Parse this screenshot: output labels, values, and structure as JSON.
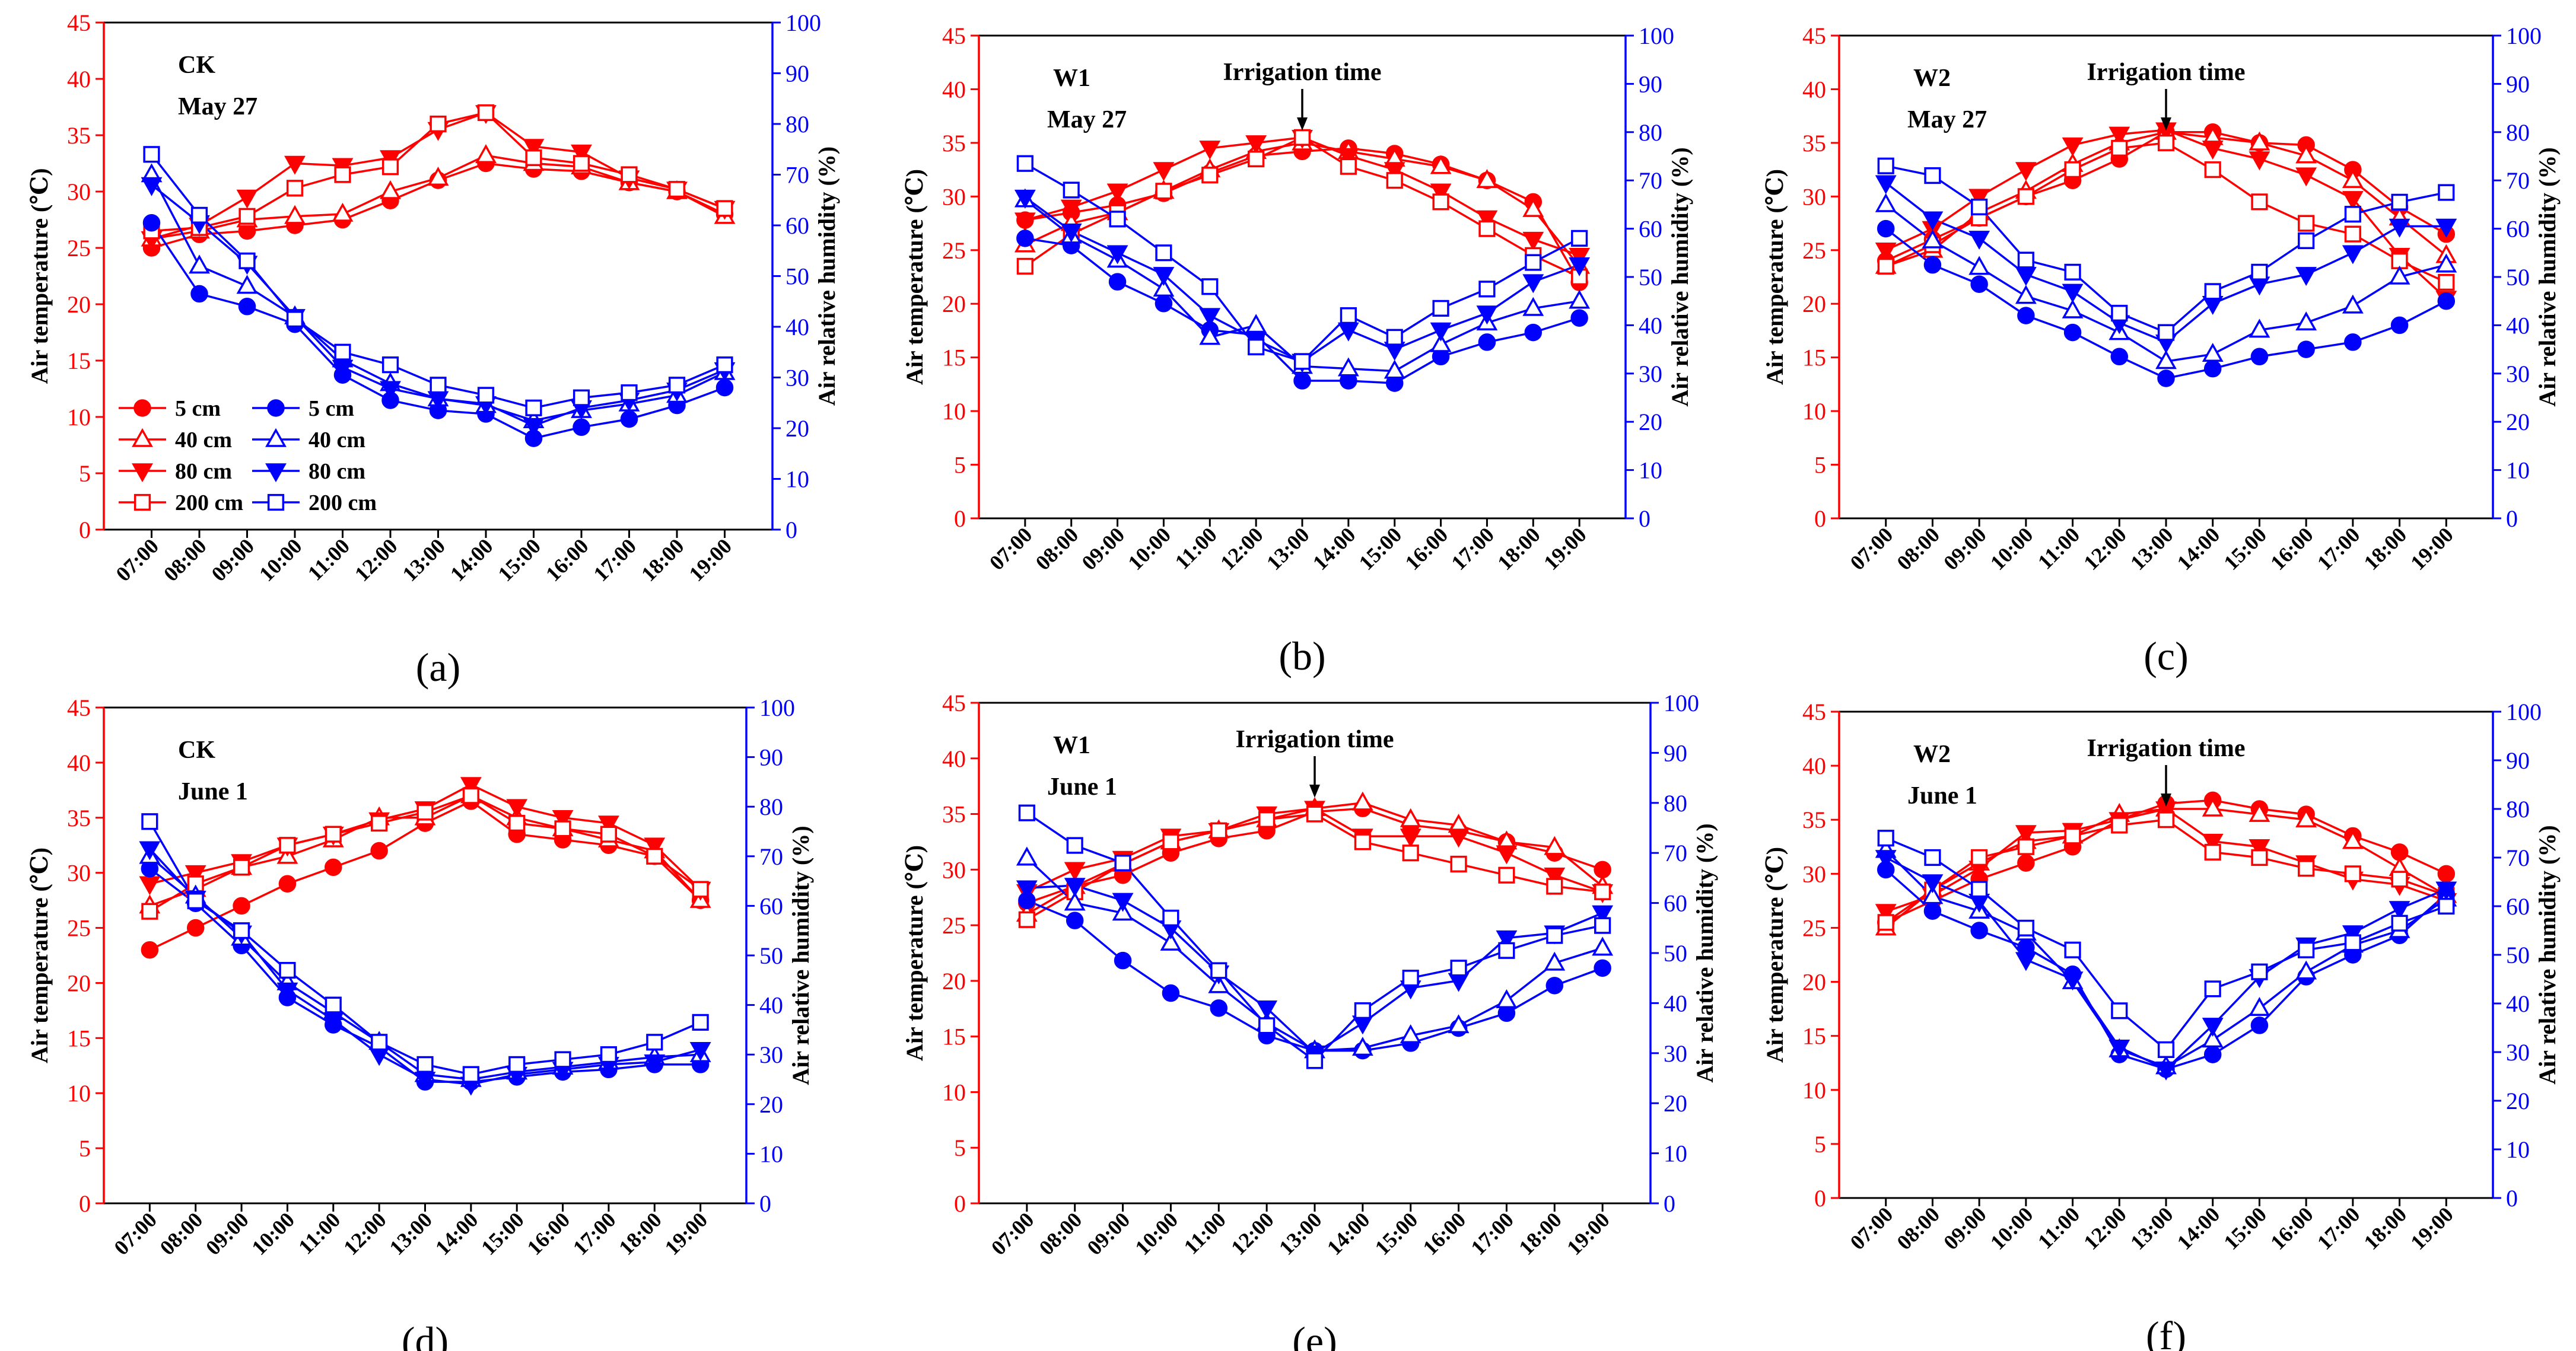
{
  "figure": {
    "times": [
      "07:00",
      "08:00",
      "09:00",
      "10:00",
      "11:00",
      "12:00",
      "13:00",
      "14:00",
      "15:00",
      "16:00",
      "17:00",
      "18:00",
      "19:00"
    ],
    "left_axis": {
      "label": "Air temperature (℃)",
      "min": 0,
      "max": 45,
      "ticks": [
        0,
        5,
        10,
        15,
        20,
        25,
        30,
        35,
        40,
        45
      ],
      "color": "#ff0000"
    },
    "right_axis": {
      "label": "Air relative humidity (%)",
      "min": 0,
      "max": 100,
      "ticks": [
        0,
        10,
        20,
        30,
        40,
        50,
        60,
        70,
        80,
        90,
        100
      ],
      "color": "#0000ff"
    },
    "legend": [
      {
        "text": "5 cm",
        "marker": "circle",
        "fill": true
      },
      {
        "text": "40 cm",
        "marker": "triangle-up",
        "fill": false
      },
      {
        "text": "80 cm",
        "marker": "triangle-down",
        "fill": true
      },
      {
        "text": "200 cm",
        "marker": "square",
        "fill": false
      }
    ],
    "colors": {
      "temperature": "#ff0000",
      "humidity": "#0000ff",
      "text": "#000000"
    }
  },
  "chart_data": [
    {
      "type": "line",
      "panel_label": "(a)",
      "title_line1": "CK",
      "title_line2": "May 27",
      "annotation": "",
      "temperature": [
        {
          "name": "5 cm",
          "values": [
            25.0,
            26.2,
            26.5,
            27.0,
            27.5,
            29.2,
            31.0,
            32.5,
            32.0,
            31.8,
            30.8,
            30.0,
            28.0
          ]
        },
        {
          "name": "40 cm",
          "values": [
            25.8,
            26.5,
            27.5,
            27.8,
            28.0,
            30.0,
            31.2,
            33.2,
            32.5,
            32.2,
            30.8,
            30.0,
            27.8
          ]
        },
        {
          "name": "80 cm",
          "values": [
            25.8,
            27.0,
            29.5,
            32.5,
            32.3,
            33.0,
            35.5,
            37.0,
            34.0,
            33.5,
            31.2,
            30.2,
            28.5
          ]
        },
        {
          "name": "200 cm",
          "values": [
            26.5,
            26.8,
            27.8,
            30.3,
            31.5,
            32.2,
            36.0,
            37.0,
            33.0,
            32.5,
            31.5,
            30.2,
            28.5
          ]
        }
      ],
      "humidity": [
        {
          "name": "5 cm",
          "values": [
            60.5,
            46.5,
            44.0,
            40.5,
            30.5,
            25.5,
            23.5,
            22.8,
            18.0,
            20.2,
            21.8,
            24.5,
            28.0
          ]
        },
        {
          "name": "40 cm",
          "values": [
            70.0,
            52.0,
            48.0,
            42.0,
            33.5,
            28.8,
            25.8,
            24.5,
            21.5,
            23.5,
            24.8,
            26.5,
            31.0
          ]
        },
        {
          "name": "80 cm",
          "values": [
            68.0,
            60.5,
            52.5,
            42.0,
            32.0,
            27.8,
            25.8,
            24.8,
            20.5,
            24.0,
            25.5,
            27.5,
            31.5
          ]
        },
        {
          "name": "200 cm",
          "values": [
            74.0,
            62.0,
            53.0,
            41.5,
            35.0,
            32.5,
            28.5,
            26.5,
            24.0,
            26.0,
            27.0,
            28.5,
            32.5
          ]
        }
      ]
    },
    {
      "type": "line",
      "panel_label": "(b)",
      "title_line1": "W1",
      "title_line2": "May 27",
      "annotation": "Irrigation time",
      "temperature": [
        {
          "name": "5 cm",
          "values": [
            27.8,
            28.5,
            29.2,
            30.3,
            32.2,
            33.8,
            34.2,
            34.5,
            34.0,
            33.0,
            31.5,
            29.5,
            22.0
          ]
        },
        {
          "name": "40 cm",
          "values": [
            25.5,
            27.5,
            28.5,
            30.5,
            32.5,
            34.2,
            35.0,
            34.2,
            33.5,
            32.8,
            31.5,
            28.8,
            23.5
          ]
        },
        {
          "name": "80 cm",
          "values": [
            27.8,
            29.0,
            30.5,
            32.5,
            34.5,
            35.0,
            35.5,
            33.8,
            32.5,
            30.5,
            28.0,
            26.0,
            24.5
          ]
        },
        {
          "name": "200 cm",
          "values": [
            23.5,
            26.5,
            28.5,
            30.5,
            32.0,
            33.5,
            35.5,
            32.8,
            31.5,
            29.5,
            27.0,
            24.5,
            22.5
          ]
        }
      ],
      "humidity": [
        {
          "name": "5 cm",
          "values": [
            58.0,
            56.5,
            49.0,
            44.5,
            39.0,
            38.0,
            28.5,
            28.5,
            28.0,
            33.5,
            36.5,
            38.5,
            41.5
          ]
        },
        {
          "name": "40 cm",
          "values": [
            66.0,
            58.5,
            53.5,
            47.5,
            37.5,
            40.0,
            31.5,
            31.0,
            30.5,
            36.0,
            40.5,
            43.5,
            45.0
          ]
        },
        {
          "name": "80 cm",
          "values": [
            66.5,
            59.5,
            55.0,
            50.5,
            42.0,
            37.0,
            32.5,
            39.0,
            35.0,
            39.0,
            42.5,
            49.0,
            52.5
          ]
        },
        {
          "name": "200 cm",
          "values": [
            73.5,
            68.0,
            62.0,
            55.0,
            48.0,
            35.5,
            32.5,
            42.0,
            37.5,
            43.5,
            47.5,
            53.0,
            58.0
          ]
        }
      ]
    },
    {
      "type": "line",
      "panel_label": "(c)",
      "title_line1": "W2",
      "title_line2": "May 27",
      "annotation": "Irrigation time",
      "temperature": [
        {
          "name": "5 cm",
          "values": [
            24.0,
            26.0,
            28.0,
            30.0,
            31.5,
            33.5,
            36.0,
            36.0,
            35.0,
            34.8,
            32.5,
            29.0,
            26.5
          ]
        },
        {
          "name": "40 cm",
          "values": [
            23.5,
            25.0,
            28.5,
            30.5,
            33.0,
            35.0,
            36.0,
            35.5,
            35.0,
            33.8,
            31.5,
            28.0,
            24.5
          ]
        },
        {
          "name": "80 cm",
          "values": [
            25.0,
            27.0,
            30.0,
            32.5,
            34.8,
            35.8,
            36.2,
            34.5,
            33.5,
            32.0,
            29.8,
            24.5,
            20.5
          ]
        },
        {
          "name": "200 cm",
          "values": [
            23.5,
            25.5,
            28.0,
            30.0,
            32.5,
            34.5,
            35.0,
            32.5,
            29.5,
            27.5,
            26.5,
            24.0,
            22.0
          ]
        }
      ],
      "humidity": [
        {
          "name": "5 cm",
          "values": [
            60.0,
            52.5,
            48.5,
            42.0,
            38.5,
            33.5,
            29.0,
            31.0,
            33.5,
            35.0,
            36.5,
            40.0,
            45.0
          ]
        },
        {
          "name": "40 cm",
          "values": [
            65.0,
            57.5,
            52.0,
            46.0,
            43.0,
            38.5,
            32.5,
            34.0,
            39.0,
            40.5,
            44.0,
            50.0,
            52.5
          ]
        },
        {
          "name": "80 cm",
          "values": [
            69.5,
            62.0,
            58.0,
            50.5,
            47.0,
            40.5,
            36.5,
            44.5,
            48.5,
            50.5,
            55.0,
            60.5,
            60.5
          ]
        },
        {
          "name": "200 cm",
          "values": [
            73.0,
            71.0,
            64.5,
            53.5,
            51.0,
            42.5,
            38.5,
            47.0,
            51.0,
            57.5,
            63.0,
            65.5,
            67.5
          ]
        }
      ]
    },
    {
      "type": "line",
      "panel_label": "(d)",
      "title_line1": "CK",
      "title_line2": "June 1",
      "annotation": "",
      "temperature": [
        {
          "name": "5 cm",
          "values": [
            23.0,
            25.0,
            27.0,
            29.0,
            30.5,
            32.0,
            34.5,
            36.5,
            33.5,
            33.0,
            32.5,
            31.5,
            27.5
          ]
        },
        {
          "name": "40 cm",
          "values": [
            27.0,
            28.5,
            30.5,
            31.5,
            33.0,
            35.0,
            35.0,
            37.0,
            35.0,
            34.0,
            33.0,
            32.0,
            27.5
          ]
        },
        {
          "name": "80 cm",
          "values": [
            29.0,
            30.0,
            31.0,
            32.5,
            33.5,
            34.8,
            35.8,
            38.0,
            36.0,
            35.0,
            34.5,
            32.5,
            28.5
          ]
        },
        {
          "name": "200 cm",
          "values": [
            26.5,
            29.0,
            30.5,
            32.5,
            33.5,
            34.5,
            35.5,
            37.0,
            34.5,
            34.0,
            33.5,
            31.5,
            28.5
          ]
        }
      ],
      "humidity": [
        {
          "name": "5 cm",
          "values": [
            67.5,
            60.5,
            52.0,
            41.5,
            36.0,
            31.5,
            24.5,
            24.5,
            25.5,
            26.5,
            27.0,
            28.0,
            28.0
          ]
        },
        {
          "name": "40 cm",
          "values": [
            70.0,
            62.0,
            53.5,
            44.5,
            38.5,
            32.5,
            26.0,
            25.0,
            26.5,
            27.5,
            28.5,
            29.5,
            30.0
          ]
        },
        {
          "name": "80 cm",
          "values": [
            71.5,
            61.5,
            54.5,
            43.0,
            37.0,
            30.0,
            25.0,
            24.0,
            26.0,
            27.0,
            28.0,
            28.5,
            31.0
          ]
        },
        {
          "name": "200 cm",
          "values": [
            77.0,
            61.0,
            55.0,
            47.0,
            40.0,
            32.5,
            28.0,
            26.0,
            28.0,
            29.0,
            30.0,
            32.5,
            36.5
          ]
        }
      ]
    },
    {
      "type": "line",
      "panel_label": "(e)",
      "title_line1": "W1",
      "title_line2": "June 1",
      "annotation": "Irrigation time",
      "temperature": [
        {
          "name": "5 cm",
          "values": [
            27.0,
            28.5,
            29.5,
            31.5,
            32.8,
            33.5,
            35.2,
            35.5,
            34.0,
            33.5,
            32.5,
            31.5,
            30.0
          ]
        },
        {
          "name": "40 cm",
          "values": [
            26.0,
            28.5,
            30.5,
            32.5,
            33.5,
            34.5,
            35.5,
            36.0,
            34.5,
            34.0,
            32.5,
            32.0,
            28.5
          ]
        },
        {
          "name": "80 cm",
          "values": [
            28.0,
            30.0,
            31.0,
            33.0,
            33.5,
            35.0,
            35.5,
            33.0,
            33.0,
            33.0,
            31.5,
            29.5,
            28.0
          ]
        },
        {
          "name": "200 cm",
          "values": [
            25.5,
            28.0,
            30.5,
            32.5,
            33.5,
            34.5,
            35.0,
            32.5,
            31.5,
            30.5,
            29.5,
            28.5,
            28.0
          ]
        }
      ],
      "humidity": [
        {
          "name": "5 cm",
          "values": [
            60.5,
            56.5,
            48.5,
            42.0,
            39.0,
            33.5,
            30.5,
            30.5,
            32.0,
            35.0,
            38.0,
            43.5,
            47.0
          ]
        },
        {
          "name": "40 cm",
          "values": [
            69.0,
            60.0,
            58.0,
            52.0,
            43.5,
            36.0,
            30.5,
            31.0,
            33.5,
            35.5,
            40.5,
            48.0,
            51.0
          ]
        },
        {
          "name": "80 cm",
          "values": [
            63.0,
            63.5,
            60.5,
            55.0,
            46.0,
            39.0,
            30.0,
            36.0,
            43.0,
            44.5,
            53.0,
            54.0,
            58.0
          ]
        },
        {
          "name": "200 cm",
          "values": [
            78.0,
            71.5,
            68.0,
            57.0,
            46.5,
            35.5,
            28.5,
            38.5,
            45.0,
            47.0,
            50.5,
            53.5,
            55.5
          ]
        }
      ]
    },
    {
      "type": "line",
      "panel_label": "(f)",
      "title_line1": "W2",
      "title_line2": "June 1",
      "annotation": "Irrigation time",
      "temperature": [
        {
          "name": "5 cm",
          "values": [
            25.5,
            27.5,
            29.5,
            31.0,
            32.5,
            35.0,
            36.5,
            36.8,
            36.0,
            35.5,
            33.5,
            32.0,
            30.0
          ]
        },
        {
          "name": "40 cm",
          "values": [
            25.0,
            28.5,
            31.0,
            33.0,
            33.5,
            35.5,
            36.0,
            36.0,
            35.5,
            35.0,
            33.0,
            30.5,
            28.0
          ]
        },
        {
          "name": "80 cm",
          "values": [
            26.5,
            28.0,
            30.5,
            33.8,
            34.0,
            35.0,
            36.0,
            33.0,
            32.5,
            31.0,
            29.5,
            29.0,
            27.5
          ]
        },
        {
          "name": "200 cm",
          "values": [
            25.5,
            28.5,
            31.5,
            32.5,
            33.5,
            34.5,
            35.0,
            32.0,
            31.5,
            30.5,
            30.0,
            29.5,
            28.0
          ]
        }
      ],
      "humidity": [
        {
          "name": "5 cm",
          "values": [
            67.5,
            59.0,
            55.0,
            51.5,
            46.0,
            29.5,
            26.5,
            29.5,
            35.5,
            45.5,
            50.0,
            54.0,
            62.5
          ]
        },
        {
          "name": "40 cm",
          "values": [
            71.5,
            62.0,
            59.0,
            54.5,
            44.5,
            30.5,
            27.0,
            32.5,
            39.0,
            46.5,
            52.0,
            55.0,
            61.5
          ]
        },
        {
          "name": "80 cm",
          "values": [
            70.0,
            65.0,
            61.0,
            49.0,
            45.0,
            31.0,
            26.5,
            35.5,
            45.5,
            52.0,
            54.5,
            59.5,
            63.5
          ]
        },
        {
          "name": "200 cm",
          "values": [
            74.0,
            70.0,
            63.5,
            55.5,
            51.0,
            38.5,
            30.5,
            43.0,
            46.5,
            51.0,
            52.5,
            56.5,
            60.0
          ]
        }
      ]
    }
  ]
}
